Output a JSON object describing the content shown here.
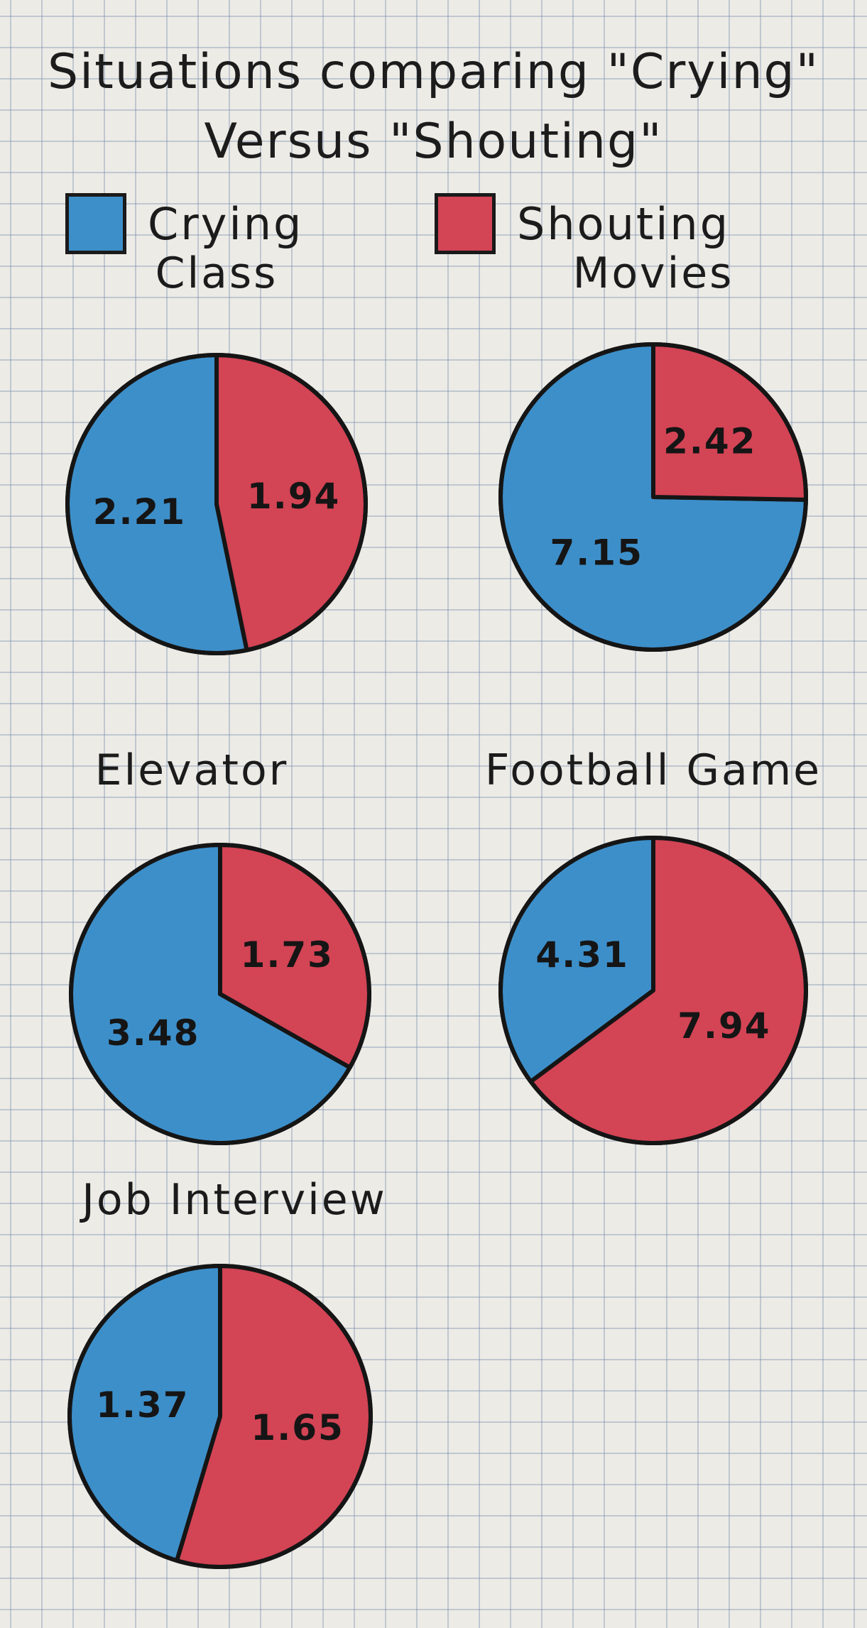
{
  "chart_data": {
    "type": "pie",
    "title_line1": "Situations comparing \"Crying\"",
    "title_line2": "Versus \"Shouting\"",
    "legend": [
      {
        "name": "Crying",
        "color": "#3d8fc9"
      },
      {
        "name": "Shouting",
        "color": "#d34455"
      }
    ],
    "legend_placement": "top",
    "pies": [
      {
        "title": "Class",
        "crying": 2.21,
        "shouting": 1.94,
        "crying_label": "2.21",
        "shouting_label": "1.94"
      },
      {
        "title": "Movies",
        "crying": 7.15,
        "shouting": 2.42,
        "crying_label": "7.15",
        "shouting_label": "2.42"
      },
      {
        "title": "Elevator",
        "crying": 3.48,
        "shouting": 1.73,
        "crying_label": "3.48",
        "shouting_label": "1.73"
      },
      {
        "title": "Football Game",
        "crying": 4.31,
        "shouting": 7.94,
        "crying_label": "4.31",
        "shouting_label": "7.94"
      },
      {
        "title": "Job Interview",
        "crying": 1.37,
        "shouting": 1.65,
        "crying_label": "1.37",
        "shouting_label": "1.65"
      }
    ]
  }
}
